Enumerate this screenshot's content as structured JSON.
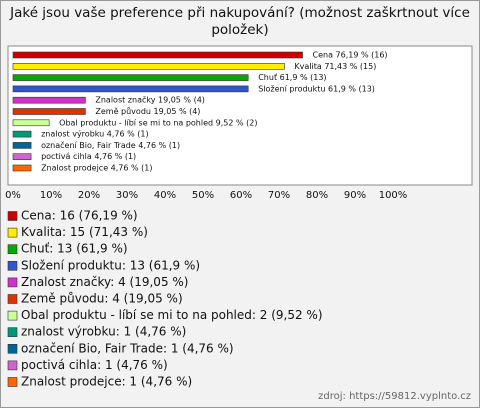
{
  "chart_data": {
    "type": "bar",
    "orientation": "horizontal",
    "title": "Jaké jsou vaše preference při nakupování? (možnost zaškrtnout více položek)",
    "categories": [
      "Cena",
      "Kvalita",
      "Chuť",
      "Složení produktu",
      "Znalost značky",
      "Země původu",
      "Obal produktu - líbí se mi to na pohled",
      "znalost výrobku",
      "označení Bio, Fair Trade",
      "poctivá cihla",
      "Znalost prodejce"
    ],
    "values": [
      76.19,
      71.43,
      61.9,
      61.9,
      19.05,
      19.05,
      9.52,
      4.76,
      4.76,
      4.76,
      4.76
    ],
    "value_labels": [
      "Cena 76,19 % (16)",
      "Kvalita 71,43 % (15)",
      "Chuť 61,9 % (13)",
      "Složení produktu 61,9 % (13)",
      "Znalost značky 19,05 % (4)",
      "Země původu 19,05 % (4)",
      "Obal produktu - líbí se mi to na pohled 9,52 % (2)",
      "znalost výrobku 4,76 % (1)",
      "označení Bio, Fair Trade 4,76 % (1)",
      "poctivá cihla 4,76 % (1)",
      "Znalost prodejce 4,76 % (1)"
    ],
    "legend_labels": [
      "Cena: 16 (76,19 %)",
      "Kvalita: 15 (71,43 %)",
      "Chuť: 13 (61,9 %)",
      "Složení produktu: 13 (61,9 %)",
      "Znalost značky: 4 (19,05 %)",
      "Země původu: 4 (19,05 %)",
      "Obal produktu - líbí se mi to na pohled: 2 (9,52 %)",
      "znalost výrobku: 1 (4,76 %)",
      "označení Bio, Fair Trade: 1 (4,76 %)",
      "poctivá cihla: 1 (4,76 %)",
      "Znalost prodejce: 1 (4,76 %)"
    ],
    "colors": [
      "#cc0000",
      "#ffee00",
      "#00aa00",
      "#3355cc",
      "#cc33cc",
      "#dd3300",
      "#ccff99",
      "#009977",
      "#006699",
      "#cc66cc",
      "#ff6600"
    ],
    "xlim": [
      0,
      100
    ],
    "xticks": [
      {
        "value": 0,
        "label": "0%"
      },
      {
        "value": 10,
        "label": "10%"
      },
      {
        "value": 20,
        "label": "20%"
      },
      {
        "value": 30,
        "label": "30%"
      },
      {
        "value": 40,
        "label": "40%"
      },
      {
        "value": 50,
        "label": "50%"
      },
      {
        "value": 60,
        "label": "60%"
      },
      {
        "value": 70,
        "label": "70%"
      },
      {
        "value": 80,
        "label": "80%"
      },
      {
        "value": 90,
        "label": "90%"
      },
      {
        "value": 100,
        "label": "100%"
      }
    ],
    "source": "zdroj: https://59812.vyplnto.cz"
  }
}
